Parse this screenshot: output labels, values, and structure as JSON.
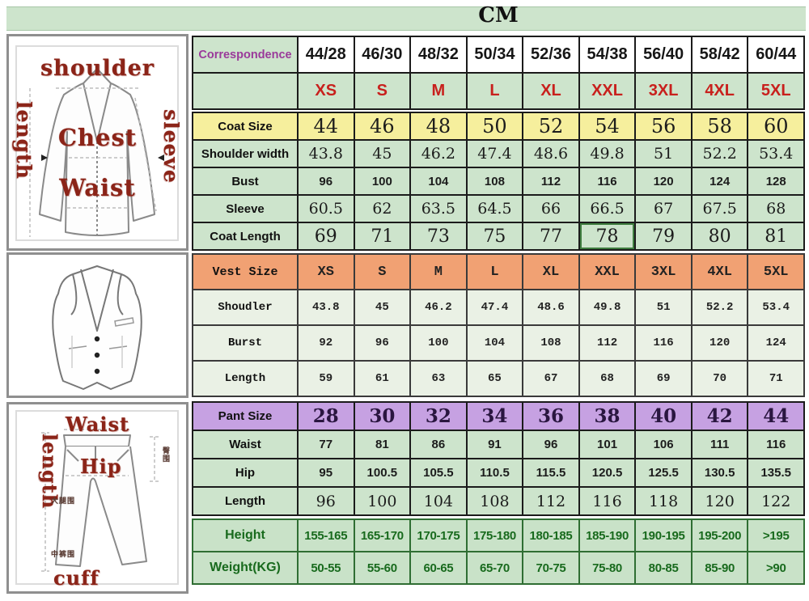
{
  "chart_data": {
    "type": "table",
    "title": "CM",
    "unit": "CM",
    "columns_header_label": "Correspondence",
    "columns": [
      "44/28",
      "46/30",
      "48/32",
      "50/34",
      "52/36",
      "54/38",
      "56/40",
      "58/42",
      "60/44"
    ],
    "size_letters": [
      "XS",
      "S",
      "M",
      "L",
      "XL",
      "XXL",
      "3XL",
      "4XL",
      "5XL"
    ],
    "sections": [
      {
        "name": "header",
        "rows": [
          {
            "label": "Correspondence",
            "kind": "corr",
            "values": [
              "44/28",
              "46/30",
              "48/32",
              "50/34",
              "52/36",
              "54/38",
              "56/40",
              "58/42",
              "60/44"
            ]
          },
          {
            "label": "",
            "kind": "sizes",
            "values": [
              "XS",
              "S",
              "M",
              "L",
              "XL",
              "XXL",
              "3XL",
              "4XL",
              "5XL"
            ]
          }
        ]
      },
      {
        "name": "coat",
        "rows": [
          {
            "label": "Coat Size",
            "kind": "coatsize",
            "values": [
              "44",
              "46",
              "48",
              "50",
              "52",
              "54",
              "56",
              "58",
              "60"
            ]
          },
          {
            "label": "Shoulder width",
            "kind": "serifmd",
            "values": [
              "43.8",
              "45",
              "46.2",
              "47.4",
              "48.6",
              "49.8",
              "51",
              "52.2",
              "53.4"
            ]
          },
          {
            "label": "Bust",
            "kind": "sansbold",
            "values": [
              "96",
              "100",
              "104",
              "108",
              "112",
              "116",
              "120",
              "124",
              "128"
            ]
          },
          {
            "label": "Sleeve",
            "kind": "serifmd",
            "values": [
              "60.5",
              "62",
              "63.5",
              "64.5",
              "66",
              "66.5",
              "67",
              "67.5",
              "68"
            ]
          },
          {
            "label": "Coat Length",
            "kind": "seriflg",
            "highlight_index": 5,
            "values": [
              "69",
              "71",
              "73",
              "75",
              "77",
              "78",
              "79",
              "80",
              "81"
            ]
          }
        ]
      },
      {
        "name": "vest",
        "rows": [
          {
            "label": "Vest Size",
            "kind": "vestsize",
            "values": [
              "XS",
              "S",
              "M",
              "L",
              "XL",
              "XXL",
              "3XL",
              "4XL",
              "5XL"
            ]
          },
          {
            "label": "Shoudler",
            "kind": "mono",
            "values": [
              "43.8",
              "45",
              "46.2",
              "47.4",
              "48.6",
              "49.8",
              "51",
              "52.2",
              "53.4"
            ]
          },
          {
            "label": "Burst",
            "kind": "mono",
            "values": [
              "92",
              "96",
              "100",
              "104",
              "108",
              "112",
              "116",
              "120",
              "124"
            ]
          },
          {
            "label": "Length",
            "kind": "mono",
            "values": [
              "59",
              "61",
              "63",
              "65",
              "67",
              "68",
              "69",
              "70",
              "71"
            ]
          }
        ]
      },
      {
        "name": "pant",
        "rows": [
          {
            "label": "Pant Size",
            "kind": "pantsize",
            "values": [
              "28",
              "30",
              "32",
              "34",
              "36",
              "38",
              "40",
              "42",
              "44"
            ]
          },
          {
            "label": "Waist",
            "kind": "sansbold",
            "values": [
              "77",
              "81",
              "86",
              "91",
              "96",
              "101",
              "106",
              "111",
              "116"
            ]
          },
          {
            "label": "Hip",
            "kind": "sansbold",
            "values": [
              "95",
              "100.5",
              "105.5",
              "110.5",
              "115.5",
              "120.5",
              "125.5",
              "130.5",
              "135.5"
            ]
          },
          {
            "label": "Length",
            "kind": "serifmd",
            "values": [
              "96",
              "100",
              "104",
              "108",
              "112",
              "116",
              "118",
              "120",
              "122"
            ]
          }
        ]
      },
      {
        "name": "body",
        "rows": [
          {
            "label": "Height",
            "kind": "body",
            "values": [
              "155-165",
              "165-170",
              "170-175",
              "175-180",
              "180-185",
              "185-190",
              "190-195",
              "195-200",
              ">195"
            ]
          },
          {
            "label": "Weight(KG)",
            "kind": "body",
            "values": [
              "50-55",
              "55-60",
              "60-65",
              "65-70",
              "70-75",
              "75-80",
              "80-85",
              "85-90",
              ">90"
            ]
          }
        ]
      }
    ]
  },
  "diagrams": {
    "jacket": {
      "shoulder": "shoulder",
      "length": "length",
      "sleeve": "sleeve",
      "chest": "Chest",
      "waist": "Waist"
    },
    "pants": {
      "waist": "Waist",
      "length": "length",
      "hip": "Hip",
      "cuff": "cuff",
      "annotations": [
        "臀围",
        "大腿围",
        "中裤围"
      ]
    }
  },
  "colors": {
    "table_green": "#cde4cc",
    "vest_green": "#eaf1e5",
    "coat_header_yellow": "#f6ef9d",
    "vest_header_orange": "#f1a173",
    "pant_header_purple": "#c6a1e2",
    "size_red_text": "#c8201d",
    "body_green_text": "#186a1d",
    "correspondence_purple": "#9a3a9a",
    "diagram_label_red": "#8b2418"
  }
}
